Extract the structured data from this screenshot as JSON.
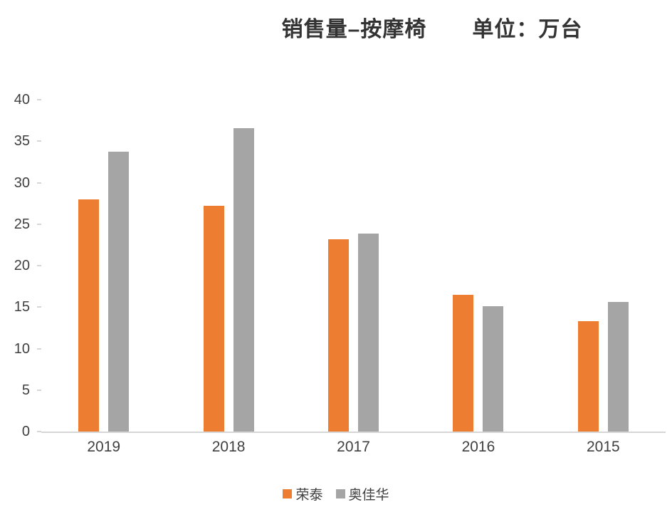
{
  "title": {
    "main": "销售量–按摩椅",
    "unit": "单位：万台"
  },
  "chart_data": {
    "type": "bar",
    "title": "销售量–按摩椅",
    "subtitle": "单位：万台",
    "categories": [
      "2019",
      "2018",
      "2017",
      "2016",
      "2015"
    ],
    "series": [
      {
        "name": "荣泰",
        "color": "#ED7D31",
        "values": [
          28.0,
          27.2,
          23.2,
          16.5,
          13.3
        ]
      },
      {
        "name": "奥佳华",
        "color": "#A5A5A5",
        "values": [
          33.7,
          36.6,
          23.9,
          15.1,
          15.6
        ]
      }
    ],
    "xlabel": "",
    "ylabel": "",
    "ylim": [
      0,
      40
    ],
    "ytick_step": 5,
    "grid": false,
    "legend_position": "bottom"
  }
}
